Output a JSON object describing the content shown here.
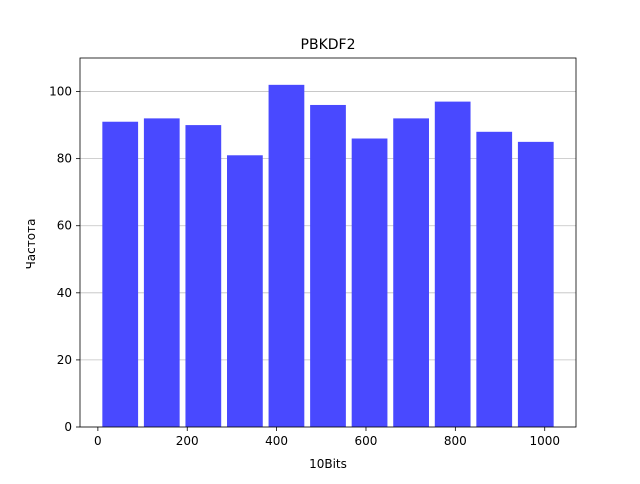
{
  "chart_data": {
    "type": "bar",
    "title": "PBKDF2",
    "xlabel": "10Bits",
    "ylabel": "Частота",
    "bar_color": "#4949ff",
    "bars": [
      {
        "x_start": 10,
        "x_end": 90,
        "value": 91
      },
      {
        "x_start": 103,
        "x_end": 183,
        "value": 92
      },
      {
        "x_start": 196,
        "x_end": 276,
        "value": 90
      },
      {
        "x_start": 289,
        "x_end": 369,
        "value": 81
      },
      {
        "x_start": 382,
        "x_end": 462,
        "value": 102
      },
      {
        "x_start": 475,
        "x_end": 555,
        "value": 96
      },
      {
        "x_start": 568,
        "x_end": 648,
        "value": 86
      },
      {
        "x_start": 661,
        "x_end": 741,
        "value": 92
      },
      {
        "x_start": 754,
        "x_end": 834,
        "value": 97
      },
      {
        "x_start": 847,
        "x_end": 927,
        "value": 88
      },
      {
        "x_start": 940,
        "x_end": 1020,
        "value": 85
      }
    ],
    "xlim": [
      -40,
      1070
    ],
    "ylim": [
      0,
      110
    ],
    "xticks": [
      0,
      200,
      400,
      600,
      800,
      1000
    ],
    "yticks": [
      0,
      20,
      40,
      60,
      80,
      100
    ],
    "grid": "y"
  }
}
